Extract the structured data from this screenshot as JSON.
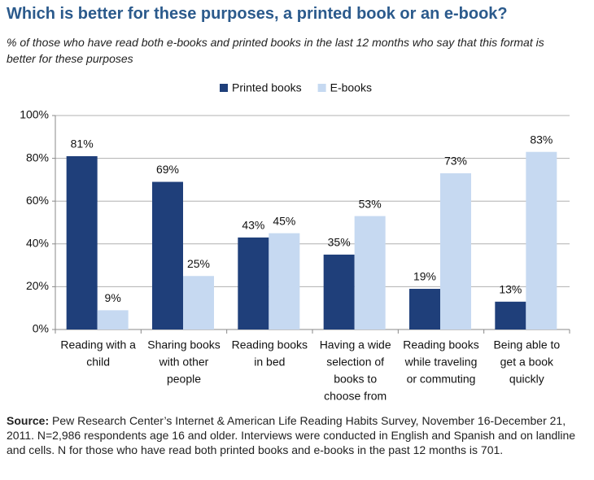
{
  "chart_data": {
    "type": "bar",
    "title": "Which is better for these purposes, a printed book or an e-book?",
    "subtitle": "% of those who have read both e-books and printed books in the last 12 months who say that this format is better for these purposes",
    "categories": [
      [
        "Reading with a",
        "child"
      ],
      [
        "Sharing books",
        "with other",
        "people"
      ],
      [
        "Reading books",
        "in bed"
      ],
      [
        "Having a wide",
        "selection of",
        "books to",
        "choose from"
      ],
      [
        "Reading books",
        "while traveling",
        "or commuting"
      ],
      [
        "Being able to",
        "get a book",
        "quickly"
      ]
    ],
    "series": [
      {
        "name": "Printed books",
        "color": "#1f3f7a",
        "values": [
          81,
          69,
          43,
          35,
          19,
          13
        ],
        "value_labels": [
          "81%",
          "69%",
          "43%",
          "35%",
          "19%",
          "13%"
        ]
      },
      {
        "name": "E-books",
        "color": "#c6d9f1",
        "values": [
          9,
          25,
          45,
          53,
          73,
          83
        ],
        "value_labels": [
          "9%",
          "25%",
          "45%",
          "53%",
          "73%",
          "83%"
        ]
      }
    ],
    "ylim": [
      0,
      100
    ],
    "yticks": [
      {
        "value": 0,
        "label": "0%"
      },
      {
        "value": 20,
        "label": "20%"
      },
      {
        "value": 40,
        "label": "40%"
      },
      {
        "value": 60,
        "label": "60%"
      },
      {
        "value": 80,
        "label": "80%"
      },
      {
        "value": 100,
        "label": "100%"
      }
    ],
    "grid": true,
    "legend": "top",
    "source_label": "Source:",
    "source": "Pew Research Center’s Internet & American Life Reading Habits Survey, November 16-December 21, 2011. N=2,986 respondents age 16 and older. Interviews were conducted in English and Spanish and on landline and cells. N for those who have read both printed books and e-books in the past 12 months is 701."
  }
}
